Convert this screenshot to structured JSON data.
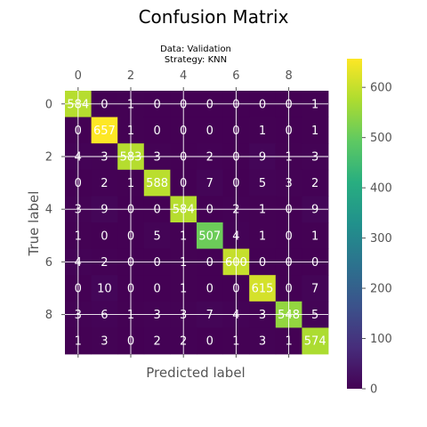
{
  "chart_data": {
    "type": "heatmap",
    "title": "Confusion Matrix",
    "subtitle_lines": [
      "Data: Validation",
      "Strategy: KNN"
    ],
    "xlabel": "Predicted label",
    "ylabel": "True label",
    "x_ticks": [
      "0",
      "2",
      "4",
      "6",
      "8"
    ],
    "y_ticks": [
      "0",
      "2",
      "4",
      "6",
      "8"
    ],
    "colorbar": {
      "min": 0,
      "max": 657,
      "ticks": [
        "0",
        "100",
        "200",
        "300",
        "400",
        "500",
        "600"
      ],
      "colormap": "viridis"
    },
    "text_color_dark": "#ffffff",
    "text_color_light": "#333333",
    "grid": true,
    "matrix": [
      [
        584,
        0,
        1,
        0,
        0,
        0,
        0,
        0,
        0,
        1
      ],
      [
        0,
        657,
        1,
        0,
        0,
        0,
        0,
        1,
        0,
        1
      ],
      [
        4,
        3,
        583,
        3,
        0,
        2,
        0,
        9,
        1,
        3
      ],
      [
        0,
        2,
        1,
        588,
        0,
        7,
        0,
        5,
        3,
        2
      ],
      [
        3,
        9,
        0,
        0,
        584,
        0,
        2,
        1,
        0,
        9
      ],
      [
        1,
        0,
        0,
        5,
        1,
        507,
        4,
        1,
        0,
        1
      ],
      [
        4,
        2,
        0,
        0,
        1,
        0,
        600,
        0,
        0,
        0
      ],
      [
        0,
        10,
        0,
        0,
        1,
        0,
        0,
        615,
        0,
        7
      ],
      [
        3,
        6,
        1,
        3,
        3,
        7,
        4,
        3,
        548,
        5
      ],
      [
        1,
        3,
        0,
        2,
        2,
        0,
        1,
        3,
        1,
        574
      ]
    ]
  }
}
